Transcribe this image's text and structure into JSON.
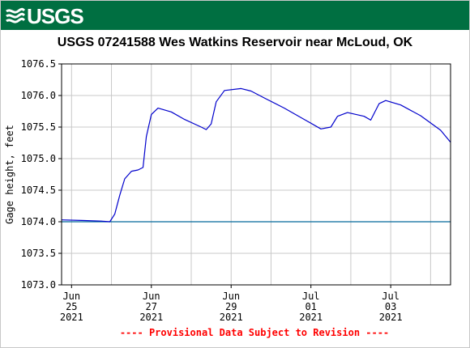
{
  "banner": {
    "logo_text": "USGS",
    "color": "#006f41"
  },
  "footer": {
    "note": "---- Provisional Data Subject to Revision ----",
    "color": "#ff0000"
  },
  "chart_data": {
    "type": "line",
    "title": "USGS 07241588 Wes Watkins Reservoir near McLoud, OK",
    "ylabel": "Gage height, feet",
    "xlabel": "",
    "ylim": [
      1073.0,
      1076.5
    ],
    "yticks": [
      1073.0,
      1073.5,
      1074.0,
      1074.5,
      1075.0,
      1075.5,
      1076.0,
      1076.5
    ],
    "ytick_labels": [
      "1073.0",
      "1073.5",
      "1074.0",
      "1074.5",
      "1075.0",
      "1075.5",
      "1076.0",
      "1076.5"
    ],
    "xlim": [
      "2021-06-24T18:00",
      "2021-07-04T12:00"
    ],
    "xticks": [
      {
        "date": "2021-06-25",
        "lines": [
          "Jun",
          "25",
          "2021"
        ]
      },
      {
        "date": "2021-06-27",
        "lines": [
          "Jun",
          "27",
          "2021"
        ]
      },
      {
        "date": "2021-06-29",
        "lines": [
          "Jun",
          "29",
          "2021"
        ]
      },
      {
        "date": "2021-07-01",
        "lines": [
          "Jul",
          "01",
          "2021"
        ]
      },
      {
        "date": "2021-07-03",
        "lines": [
          "Jul",
          "03",
          "2021"
        ]
      }
    ],
    "grid": true,
    "reference_line": {
      "y": 1074.0,
      "color": "#00689b"
    },
    "series": [
      {
        "color": "#0000cc",
        "points": [
          [
            "2021-06-24T18:00",
            1074.03
          ],
          [
            "2021-06-25T06:00",
            1074.02
          ],
          [
            "2021-06-25T18:00",
            1074.01
          ],
          [
            "2021-06-25T23:00",
            1074.0
          ],
          [
            "2021-06-26T02:00",
            1074.12
          ],
          [
            "2021-06-26T05:00",
            1074.42
          ],
          [
            "2021-06-26T08:00",
            1074.68
          ],
          [
            "2021-06-26T12:00",
            1074.8
          ],
          [
            "2021-06-26T16:00",
            1074.82
          ],
          [
            "2021-06-26T19:00",
            1074.86
          ],
          [
            "2021-06-26T21:00",
            1075.35
          ],
          [
            "2021-06-27T00:00",
            1075.7
          ],
          [
            "2021-06-27T04:00",
            1075.8
          ],
          [
            "2021-06-27T12:00",
            1075.74
          ],
          [
            "2021-06-27T20:00",
            1075.62
          ],
          [
            "2021-06-28T06:00",
            1075.5
          ],
          [
            "2021-06-28T09:00",
            1075.46
          ],
          [
            "2021-06-28T12:00",
            1075.55
          ],
          [
            "2021-06-28T15:00",
            1075.9
          ],
          [
            "2021-06-28T20:00",
            1076.08
          ],
          [
            "2021-06-29T06:00",
            1076.11
          ],
          [
            "2021-06-29T12:00",
            1076.07
          ],
          [
            "2021-06-29T20:00",
            1075.96
          ],
          [
            "2021-06-30T08:00",
            1075.8
          ],
          [
            "2021-06-30T20:00",
            1075.62
          ],
          [
            "2021-07-01T06:00",
            1075.47
          ],
          [
            "2021-07-01T12:00",
            1075.5
          ],
          [
            "2021-07-01T16:00",
            1075.67
          ],
          [
            "2021-07-01T22:00",
            1075.73
          ],
          [
            "2021-07-02T08:00",
            1075.67
          ],
          [
            "2021-07-02T12:00",
            1075.61
          ],
          [
            "2021-07-02T17:00",
            1075.87
          ],
          [
            "2021-07-02T21:00",
            1075.92
          ],
          [
            "2021-07-03T06:00",
            1075.85
          ],
          [
            "2021-07-03T18:00",
            1075.68
          ],
          [
            "2021-07-04T06:00",
            1075.45
          ],
          [
            "2021-07-04T12:00",
            1075.26
          ]
        ]
      }
    ]
  }
}
